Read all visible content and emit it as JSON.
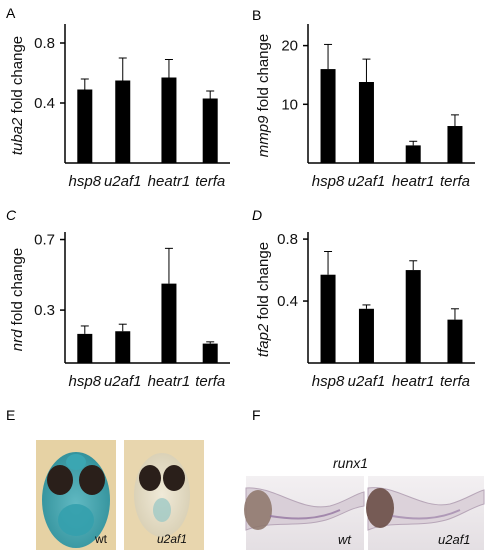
{
  "panels": {
    "A": "A",
    "B": "B",
    "C": "C",
    "D": "D",
    "E": "E",
    "F": "F"
  },
  "chart_data": [
    {
      "type": "bar",
      "panel": "A",
      "ylabel_gene": "tuba2",
      "ylabel_rest": " fold change",
      "categories": [
        "hsp8",
        "u2af1",
        "heatr1",
        "terfa"
      ],
      "values": [
        0.49,
        0.55,
        0.57,
        0.43
      ],
      "errors": [
        0.07,
        0.15,
        0.12,
        0.05
      ],
      "yticks": [
        "0.4",
        "0.8"
      ],
      "ytick_values": [
        0.4,
        0.8
      ],
      "ylim": [
        0,
        0.9
      ],
      "color": "#000000"
    },
    {
      "type": "bar",
      "panel": "B",
      "ylabel_gene": "mmp9",
      "ylabel_rest": " fold change",
      "categories": [
        "hsp8",
        "u2af1",
        "heatr1",
        "terfa"
      ],
      "values": [
        16,
        13.8,
        3.0,
        6.3
      ],
      "errors": [
        4.2,
        3.9,
        0.7,
        1.9
      ],
      "yticks": [
        "10",
        "20"
      ],
      "ytick_values": [
        10,
        20
      ],
      "ylim": [
        0,
        23
      ],
      "color": "#000000"
    },
    {
      "type": "bar",
      "panel": "C",
      "ylabel_gene": "nrd",
      "ylabel_rest": " fold change",
      "categories": [
        "hsp8",
        "u2af1",
        "heatr1",
        "terfa"
      ],
      "values": [
        0.165,
        0.18,
        0.45,
        0.11
      ],
      "errors": [
        0.045,
        0.04,
        0.2,
        0.01
      ],
      "yticks": [
        "0.3",
        "0.7"
      ],
      "ytick_values": [
        0.3,
        0.7
      ],
      "ylim": [
        0,
        0.72
      ],
      "color": "#000000"
    },
    {
      "type": "bar",
      "panel": "D",
      "ylabel_gene": "tfap2",
      "ylabel_rest": " fold change",
      "categories": [
        "hsp8",
        "u2af1",
        "heatr1",
        "terfa"
      ],
      "values": [
        0.57,
        0.35,
        0.6,
        0.28
      ],
      "errors": [
        0.15,
        0.025,
        0.06,
        0.07
      ],
      "yticks": [
        "0.4",
        "0.8"
      ],
      "ytick_values": [
        0.4,
        0.8
      ],
      "ylim": [
        0,
        0.82
      ],
      "color": "#000000"
    }
  ],
  "photos": {
    "E": {
      "left_label": "wt",
      "right_label": "u2af1",
      "stain_color": "#2e9aa6",
      "background": "#e8d4a8"
    },
    "F": {
      "title": "runx1",
      "left_label": "wt",
      "right_label": "u2af1",
      "stain_color": "#8a6a9a"
    }
  }
}
